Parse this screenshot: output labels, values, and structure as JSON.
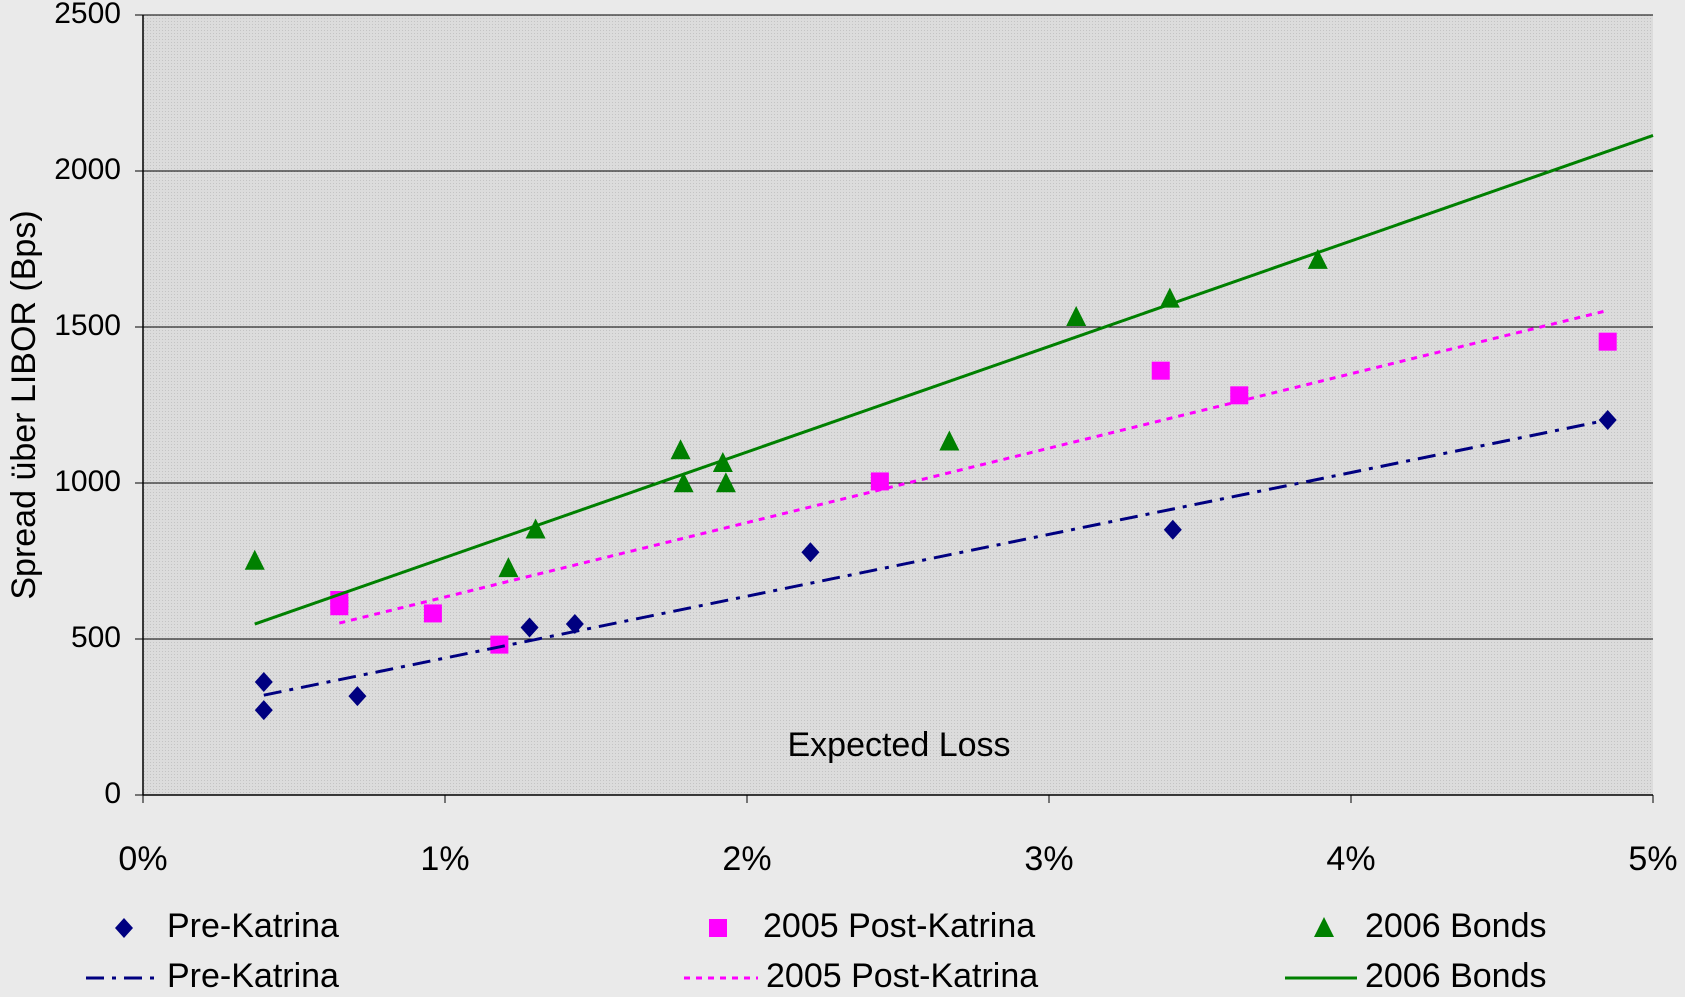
{
  "chart_data": {
    "type": "scatter",
    "x_label": "Expected Loss",
    "y_label": "Spread über LIBOR (Bps)",
    "xlim": [
      0,
      5
    ],
    "xticks": [
      {
        "value": 0,
        "label": "0%"
      },
      {
        "value": 1,
        "label": "1%"
      },
      {
        "value": 2,
        "label": "2%"
      },
      {
        "value": 3,
        "label": "3%"
      },
      {
        "value": 4,
        "label": "4%"
      },
      {
        "value": 5,
        "label": "5%"
      }
    ],
    "ylim": [
      0,
      2500
    ],
    "yticks": [
      0,
      500,
      1000,
      1500,
      2000,
      2500
    ],
    "grid": true,
    "legend": "bottom",
    "series": [
      {
        "name": "Pre-Katrina",
        "color": "#000080",
        "kind": "scatter",
        "marker": "diamond",
        "x": [
          0.4,
          0.4,
          0.71,
          1.28,
          1.43,
          2.21,
          3.41,
          4.85
        ],
        "values": [
          272,
          362,
          317,
          537,
          548,
          778,
          850,
          1202
        ]
      },
      {
        "name": "2005 Post-Katrina",
        "color": "#ff00ff",
        "kind": "scatter",
        "marker": "square",
        "x": [
          0.65,
          0.65,
          0.96,
          1.18,
          2.44,
          3.37,
          3.63,
          4.85
        ],
        "values": [
          605,
          625,
          582,
          482,
          1005,
          1360,
          1281,
          1453
        ]
      },
      {
        "name": "2006 Bonds",
        "color": "#008000",
        "kind": "scatter",
        "marker": "triangle",
        "x": [
          0.37,
          1.21,
          1.3,
          1.78,
          1.79,
          1.92,
          1.93,
          2.67,
          3.09,
          3.4,
          3.89
        ],
        "values": [
          751,
          727,
          851,
          1105,
          999,
          1064,
          999,
          1133,
          1532,
          1591,
          1715
        ]
      },
      {
        "name": "Pre-Katrina",
        "color": "#000080",
        "kind": "line",
        "dash": "dashdot",
        "x": [
          0.4,
          4.85
        ],
        "values": [
          320,
          1202
        ]
      },
      {
        "name": "2005 Post-Katrina",
        "color": "#ff00ff",
        "kind": "line",
        "dash": "dot",
        "x": [
          0.65,
          4.85
        ],
        "values": [
          551,
          1553
        ]
      },
      {
        "name": "2006 Bonds",
        "color": "#008000",
        "kind": "line",
        "dash": "solid",
        "x": [
          0.37,
          5.0
        ],
        "values": [
          548,
          2114
        ]
      }
    ]
  }
}
